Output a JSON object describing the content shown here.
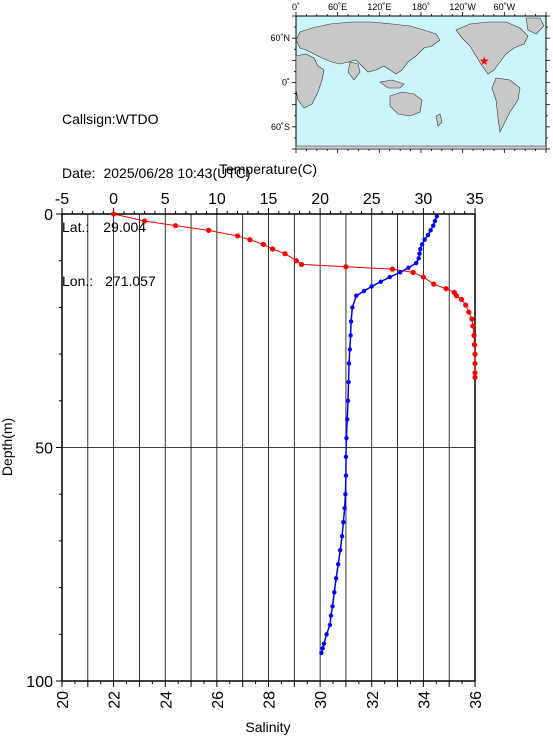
{
  "info": {
    "callsign_label": "Callsign:",
    "callsign": "WTDO",
    "date_label": "Date:",
    "date": "2025/06/28 10:43(UTC)",
    "lat_label": "Lat.:",
    "lat": "29.004",
    "lon_label": "Lon.:",
    "lon": "271.057"
  },
  "map": {
    "lon_labels": [
      "0˚",
      "60˚E",
      "120˚E",
      "180˚",
      "120˚W",
      "60˚W"
    ],
    "lat_labels": [
      "60˚N",
      "0˚",
      "60˚S"
    ],
    "ocean_color": "#ccf5fb",
    "land_color": "#c8c8c8",
    "marker_color": "#ff0000",
    "marker_icon": "star-icon"
  },
  "chart_data": {
    "type": "line",
    "xlabel_top": "Temperature(C)",
    "xlabel_bottom": "Salinity",
    "ylabel": "Depth(m)",
    "temperature_range": [
      -5,
      35
    ],
    "temperature_ticks": [
      "-5",
      "0",
      "5",
      "10",
      "15",
      "20",
      "25",
      "30",
      "35"
    ],
    "salinity_range": [
      20,
      36
    ],
    "salinity_ticks": [
      "20",
      "22",
      "24",
      "26",
      "28",
      "30",
      "32",
      "34",
      "36"
    ],
    "depth_range": [
      0,
      100
    ],
    "depth_ticks": [
      "0",
      "50",
      "100"
    ],
    "grid": true,
    "series": [
      {
        "quantity": "temperature",
        "color": "#ff0000",
        "x": [
          0.0,
          3.0,
          6.0,
          9.2,
          12.0,
          13.2,
          14.5,
          15.4,
          16.6,
          17.7,
          18.2,
          22.5,
          27.0,
          29.0,
          30.0,
          31.0,
          32.2,
          33.0,
          33.2,
          33.7,
          34.1,
          34.4,
          34.7,
          34.8,
          34.9,
          34.95,
          35.0,
          35.0,
          35.0,
          35.0
        ],
        "depth": [
          0.0,
          1.5,
          2.5,
          3.5,
          4.7,
          5.5,
          6.5,
          7.5,
          8.5,
          10.0,
          10.8,
          11.3,
          11.8,
          12.5,
          13.5,
          15.0,
          16.0,
          16.8,
          17.5,
          18.3,
          19.5,
          21.0,
          22.5,
          24.0,
          26.0,
          28.0,
          30.0,
          32.0,
          34.0,
          35.0
        ]
      },
      {
        "quantity": "salinity",
        "color": "#0000ff",
        "x": [
          34.52,
          34.45,
          34.38,
          34.28,
          34.18,
          34.05,
          33.95,
          33.88,
          33.85,
          33.82,
          33.72,
          33.42,
          33.1,
          32.7,
          32.35,
          32.0,
          31.7,
          31.4,
          31.25,
          31.2,
          31.18,
          31.15,
          31.12,
          31.1,
          31.08,
          31.05,
          31.02,
          31.0,
          31.0,
          30.98,
          30.95,
          30.9,
          30.85,
          30.78,
          30.7,
          30.62,
          30.55,
          30.48,
          30.42,
          30.38,
          30.25,
          30.15,
          30.1,
          30.05
        ],
        "depth": [
          0.5,
          1.5,
          2.5,
          3.5,
          4.5,
          5.5,
          6.5,
          7.5,
          8.5,
          9.5,
          10.5,
          11.5,
          12.5,
          13.5,
          14.5,
          15.5,
          16.5,
          17.5,
          20.0,
          23.0,
          26.0,
          29.0,
          32.0,
          36.0,
          40.0,
          44.0,
          48.0,
          52.0,
          56.0,
          60.0,
          63.0,
          66.0,
          69.0,
          72.0,
          75.0,
          78.0,
          81.0,
          84.0,
          86.0,
          88.0,
          90.0,
          92.0,
          93.0,
          94.0
        ]
      }
    ]
  }
}
